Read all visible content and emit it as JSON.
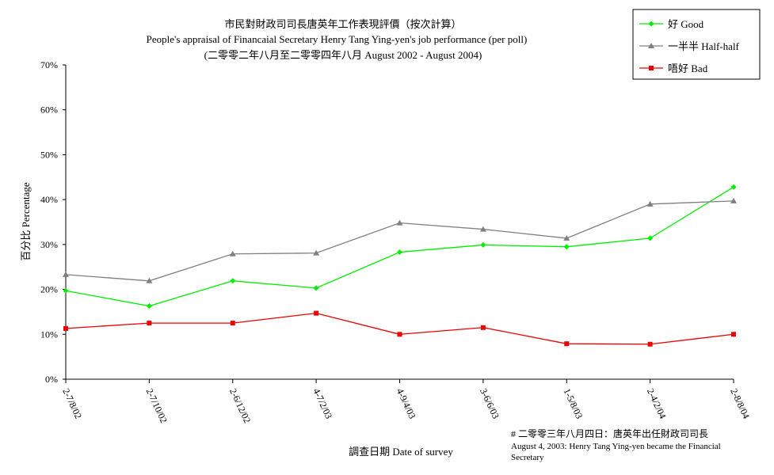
{
  "chart_data": {
    "type": "line",
    "title": "市民對財政司司長唐英年工作表現評價（按次計算）",
    "subtitle": "People's appraisal of Financaial Secretary Henry Tang Ying-yen's job performance (per poll)",
    "subtitle2": "(二零零二年八月至二零零四年八月 August 2002 - August 2004)",
    "xlabel": "調查日期 Date of survey",
    "ylabel": "百分比 Percentage",
    "ylim": [
      0,
      70
    ],
    "yticks": [
      "0%",
      "10%",
      "20%",
      "30%",
      "40%",
      "50%",
      "60%",
      "70%"
    ],
    "categories": [
      "2-7/8/02",
      "2-7/10/02",
      "2-6/12/02",
      "4-7/2/03",
      "4-9/4/03",
      "3-6/6/03",
      "1-5/8/03",
      "2-4/2/04",
      "2-8/8/04"
    ],
    "series": [
      {
        "name": "好 Good",
        "color": "#00ee00",
        "marker": "diamond",
        "values": [
          19.7,
          16.3,
          21.9,
          20.3,
          28.3,
          29.9,
          29.5,
          31.4,
          42.8
        ]
      },
      {
        "name": "一半半 Half-half",
        "color": "#808080",
        "marker": "triangle",
        "values": [
          23.3,
          21.9,
          27.9,
          28.1,
          34.8,
          33.4,
          31.4,
          39.0,
          39.7
        ]
      },
      {
        "name": "唔好 Bad",
        "color": "#ee0000",
        "marker": "square",
        "values": [
          11.3,
          12.5,
          12.5,
          14.7,
          10.0,
          11.5,
          7.9,
          7.8,
          10.0
        ]
      }
    ],
    "legend_position": "top-right",
    "grid": false,
    "annotation": {
      "line1": "# 二零零三年八月四日：唐英年出任財政司司長",
      "line2": "August 4, 2003: Henry Tang Ying-yen became the Financial",
      "line3": "Secretary"
    }
  }
}
